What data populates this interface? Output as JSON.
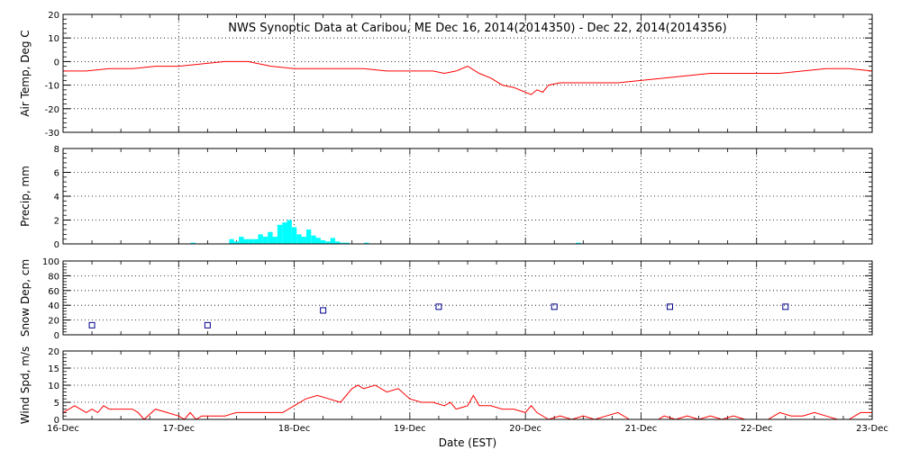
{
  "title": "NWS Synoptic Data at Caribou, ME    Dec 16, 2014(2014350) - Dec 22, 2014(2014356)",
  "xlabel": "Date (EST)",
  "xtick_labels": [
    "16-Dec",
    "17-Dec",
    "18-Dec",
    "19-Dec",
    "20-Dec",
    "21-Dec",
    "22-Dec",
    "23-Dec"
  ],
  "colors": {
    "temp": "#ff0000",
    "precip": "#00ffff",
    "snow": "#00008b",
    "wind": "#ff0000",
    "axis": "#000000"
  },
  "chart_data": [
    {
      "type": "line",
      "ylabel": "Air Temp, Deg C",
      "ylim": [
        -30,
        20
      ],
      "yticks": [
        -30,
        -20,
        -10,
        0,
        10,
        20
      ],
      "xlim": [
        0,
        7
      ],
      "grid": true,
      "series": [
        {
          "x": [
            0,
            0.2,
            0.4,
            0.5,
            0.6,
            0.8,
            1,
            1.2,
            1.4,
            1.6,
            1.8,
            2,
            2.2,
            2.4,
            2.6,
            2.8,
            3,
            3.2,
            3.3,
            3.4,
            3.5,
            3.6,
            3.7,
            3.8,
            3.9,
            4,
            4.05,
            4.1,
            4.15,
            4.2,
            4.3,
            4.4,
            4.6,
            4.8,
            5,
            5.2,
            5.4,
            5.6,
            5.8,
            6,
            6.2,
            6.4,
            6.6,
            6.8,
            7
          ],
          "values": [
            -4,
            -4,
            -3,
            -3,
            -3,
            -2,
            -2,
            -1,
            0,
            0,
            -2,
            -3,
            -3,
            -3,
            -3,
            -4,
            -4,
            -4,
            -5,
            -4,
            -2,
            -5,
            -7,
            -10,
            -11,
            -13,
            -14,
            -12,
            -13,
            -10,
            -9,
            -9,
            -9,
            -9,
            -8,
            -7,
            -6,
            -5,
            -5,
            -5,
            -5,
            -4,
            -3,
            -3,
            -4
          ]
        }
      ]
    },
    {
      "type": "bar",
      "ylabel": "Precip, mm",
      "ylim": [
        0,
        8
      ],
      "yticks": [
        0,
        2,
        4,
        6,
        8
      ],
      "xlim": [
        0,
        7
      ],
      "grid": true,
      "series": [
        {
          "x": [
            1.125,
            1.458,
            1.5,
            1.542,
            1.583,
            1.625,
            1.667,
            1.708,
            1.75,
            1.792,
            1.833,
            1.875,
            1.917,
            1.958,
            2,
            2.042,
            2.083,
            2.125,
            2.167,
            2.208,
            2.25,
            2.292,
            2.333,
            2.375,
            2.417,
            2.458,
            2.625,
            4.458
          ],
          "values": [
            0.1,
            0.4,
            0.2,
            0.6,
            0.4,
            0.4,
            0.4,
            0.8,
            0.6,
            1.0,
            0.6,
            1.6,
            1.8,
            2.0,
            1.4,
            0.8,
            0.6,
            1.2,
            0.7,
            0.5,
            0.3,
            0.2,
            0.5,
            0.2,
            0.1,
            0.1,
            0.1,
            0.1
          ]
        }
      ]
    },
    {
      "type": "scatter",
      "ylabel": "Snow Dep, cm",
      "ylim": [
        0,
        100
      ],
      "yticks": [
        0,
        20,
        40,
        60,
        80,
        100
      ],
      "xlim": [
        0,
        7
      ],
      "grid": true,
      "series": [
        {
          "x": [
            0.25,
            1.25,
            2.25,
            3.25,
            4.25,
            5.25,
            6.25
          ],
          "values": [
            13,
            13,
            33,
            38,
            38,
            38,
            38
          ]
        }
      ]
    },
    {
      "type": "line",
      "ylabel": "Wind Spd, m/s",
      "ylim": [
        0,
        20
      ],
      "yticks": [
        0,
        5,
        10,
        15,
        20
      ],
      "xlim": [
        0,
        7
      ],
      "grid": true,
      "series": [
        {
          "x": [
            0,
            0.1,
            0.15,
            0.2,
            0.25,
            0.3,
            0.35,
            0.4,
            0.5,
            0.6,
            0.65,
            0.7,
            0.8,
            0.9,
            1,
            1.05,
            1.1,
            1.15,
            1.2,
            1.3,
            1.4,
            1.5,
            1.6,
            1.7,
            1.8,
            1.9,
            2,
            2.1,
            2.2,
            2.3,
            2.4,
            2.5,
            2.55,
            2.6,
            2.7,
            2.8,
            2.9,
            3,
            3.1,
            3.2,
            3.3,
            3.35,
            3.4,
            3.5,
            3.55,
            3.6,
            3.7,
            3.8,
            3.9,
            4,
            4.05,
            4.1,
            4.2,
            4.3,
            4.4,
            4.5,
            4.6,
            4.7,
            4.8,
            4.9,
            5,
            5.1,
            5.15,
            5.2,
            5.3,
            5.4,
            5.5,
            5.6,
            5.7,
            5.8,
            5.9,
            6,
            6.1,
            6.2,
            6.3,
            6.4,
            6.5,
            6.6,
            6.7,
            6.8,
            6.9,
            7
          ],
          "values": [
            2,
            4,
            3,
            2,
            3,
            2,
            4,
            3,
            3,
            3,
            2,
            0,
            3,
            2,
            1,
            0,
            2,
            0,
            1,
            1,
            1,
            2,
            2,
            2,
            2,
            2,
            4,
            6,
            7,
            6,
            5,
            9,
            10,
            9,
            10,
            8,
            9,
            6,
            5,
            5,
            4,
            5,
            3,
            4,
            7,
            4,
            4,
            3,
            3,
            2,
            4,
            2,
            0,
            1,
            0,
            1,
            0,
            1,
            2,
            0,
            0,
            0,
            0,
            1,
            0,
            1,
            0,
            1,
            0,
            1,
            0,
            0,
            0,
            2,
            1,
            1,
            2,
            1,
            0,
            0,
            2,
            2
          ]
        }
      ]
    }
  ]
}
